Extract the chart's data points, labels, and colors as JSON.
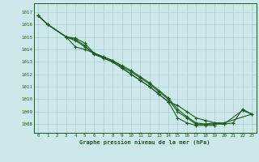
{
  "title": "Graphe pression niveau de la mer (hPa)",
  "bg_color": "#cce8ea",
  "grid_color": "#aacccc",
  "line_color": "#1a5c1a",
  "xlim": [
    -0.5,
    23.5
  ],
  "ylim": [
    1007.3,
    1017.7
  ],
  "yticks": [
    1008,
    1009,
    1010,
    1011,
    1012,
    1013,
    1014,
    1015,
    1016,
    1017
  ],
  "xticks": [
    0,
    1,
    2,
    3,
    4,
    5,
    6,
    7,
    8,
    9,
    10,
    11,
    12,
    13,
    14,
    15,
    16,
    17,
    18,
    19,
    20,
    21,
    22,
    23
  ],
  "lines": [
    [
      1016.7,
      1016.0,
      null,
      1015.0,
      1014.8,
      1014.3,
      1013.6,
      1013.3,
      1013.0,
      1012.5,
      1012.0,
      1011.5,
      1011.0,
      1010.4,
      1009.8,
      1008.5,
      1008.1,
      1007.9,
      1007.9,
      1007.9,
      null,
      null,
      null,
      null
    ],
    [
      1016.7,
      1016.0,
      null,
      1015.0,
      1014.7,
      1014.2,
      1013.7,
      1013.4,
      1013.1,
      1012.6,
      1012.2,
      1011.7,
      1011.2,
      1010.6,
      1010.0,
      1009.0,
      1008.5,
      1008.0,
      1008.0,
      1008.0,
      1008.0,
      null,
      1009.1,
      1008.8
    ],
    [
      1016.7,
      1016.0,
      null,
      1015.0,
      1014.9,
      1014.5,
      1013.7,
      1013.4,
      1013.1,
      1012.7,
      1012.3,
      1011.8,
      1011.3,
      1010.7,
      1010.1,
      1009.2,
      1008.6,
      1008.1,
      1008.0,
      1008.1,
      1008.1,
      null,
      null,
      1008.8
    ],
    [
      1016.7,
      1016.0,
      null,
      1015.0,
      1014.2,
      1014.0,
      1013.7,
      1013.3,
      1013.0,
      1012.5,
      1012.0,
      1011.5,
      1011.0,
      1010.4,
      1009.8,
      1009.5,
      1009.0,
      1008.5,
      1008.3,
      1008.1,
      1008.0,
      1008.1,
      1009.2,
      1008.8
    ]
  ]
}
